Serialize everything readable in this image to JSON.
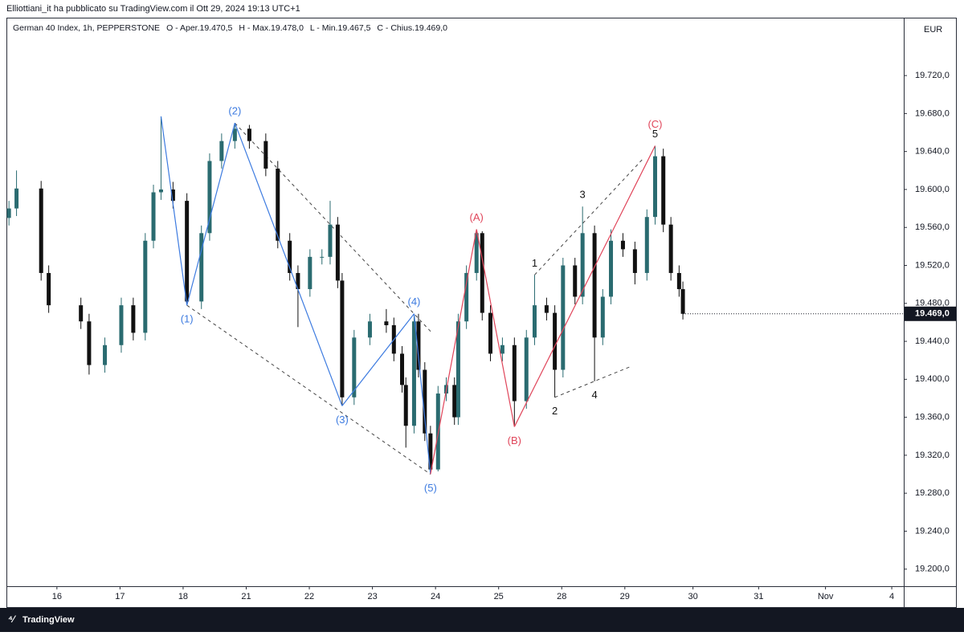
{
  "header": {
    "publisher": "Elliottiani_it ha pubblicato su TradingView.com il Ott 29, 2024 19:13 UTC+1"
  },
  "footer": {
    "brand": "TradingView"
  },
  "chart_data": {
    "type": "candlestick",
    "title": "German 40 Index, 1h, PEPPERSTONE",
    "ohlc_legend": [
      "O - Aper.19.470,5",
      "H - Max.19.478,0",
      "L - Min.19.467,5",
      "C - Chius.19.469,0"
    ],
    "currency": "EUR",
    "up_color": "#2a6b70",
    "down_color": "#111111",
    "x": [
      -0.76,
      -0.64,
      -0.25,
      -0.13,
      0.38,
      0.51,
      0.76,
      1.02,
      1.21,
      1.4,
      1.53,
      1.65,
      1.84,
      2.06,
      2.29,
      2.42,
      2.61,
      2.82,
      3.05,
      3.31,
      3.5,
      3.69,
      3.82,
      4.01,
      4.2,
      4.33,
      4.45,
      4.52,
      4.71,
      4.96,
      5.22,
      5.34,
      5.47,
      5.53,
      5.66,
      5.73,
      5.83,
      5.92,
      6.04,
      6.17,
      6.3,
      6.36,
      6.49,
      6.65,
      6.74,
      6.87,
      7.06,
      7.25,
      7.44,
      7.57,
      7.76,
      7.89,
      8.02,
      8.21,
      8.33,
      8.52,
      8.65,
      8.78,
      8.97,
      9.16,
      9.35,
      9.48,
      9.61,
      9.73,
      9.86,
      9.92
    ],
    "open": [
      19570,
      19580,
      19601,
      19512,
      19478,
      19461,
      19415,
      19436,
      19478,
      19449,
      19546,
      19597,
      19600,
      19588,
      19482,
      19554,
      19630,
      19651,
      19664,
      19651,
      19622,
      19546,
      19512,
      19495,
      19529,
      19529,
      19563,
      19504,
      19381,
      19444,
      19461,
      19457,
      19427,
      19394,
      19351,
      19461,
      19410,
      19343,
      19305,
      19385,
      19394,
      19360,
      19461,
      19512,
      19554,
      19470,
      19427,
      19436,
      19377,
      19444,
      19478,
      19470,
      19410,
      19520,
      19487,
      19554,
      19444,
      19487,
      19546,
      19537,
      19512,
      19571,
      19635,
      19563,
      19512,
      19495
    ],
    "high": [
      19588,
      19620,
      19609,
      19520,
      19486,
      19469,
      19444,
      19486,
      19486,
      19554,
      19605,
      19677,
      19608,
      19596,
      19562,
      19638,
      19659,
      19670,
      19668,
      19659,
      19630,
      19554,
      19520,
      19537,
      19537,
      19588,
      19571,
      19512,
      19452,
      19469,
      19474,
      19465,
      19435,
      19402,
      19469,
      19469,
      19418,
      19351,
      19393,
      19402,
      19402,
      19469,
      19520,
      19558,
      19556,
      19478,
      19444,
      19444,
      19452,
      19510,
      19486,
      19478,
      19528,
      19528,
      19582,
      19562,
      19495,
      19558,
      19554,
      19545,
      19579,
      19646,
      19643,
      19571,
      19520,
      19503
    ],
    "low": [
      19562,
      19572,
      19504,
      19470,
      19453,
      19405,
      19407,
      19428,
      19441,
      19441,
      19538,
      19589,
      19580,
      19478,
      19474,
      19546,
      19622,
      19643,
      19643,
      19614,
      19538,
      19504,
      19455,
      19487,
      19521,
      19521,
      19496,
      19372,
      19373,
      19436,
      19449,
      19419,
      19386,
      19328,
      19343,
      19402,
      19335,
      19300,
      19303,
      19377,
      19352,
      19352,
      19453,
      19504,
      19462,
      19419,
      19419,
      19350,
      19369,
      19436,
      19462,
      19381,
      19402,
      19479,
      19479,
      19398,
      19436,
      19479,
      19529,
      19500,
      19504,
      19563,
      19555,
      19504,
      19487,
      19463
    ],
    "close": [
      19580,
      19601,
      19512,
      19478,
      19461,
      19415,
      19436,
      19478,
      19449,
      19546,
      19597,
      19600,
      19588,
      19482,
      19554,
      19630,
      19651,
      19664,
      19651,
      19622,
      19546,
      19512,
      19495,
      19529,
      19529,
      19563,
      19504,
      19381,
      19444,
      19461,
      19457,
      19427,
      19394,
      19351,
      19461,
      19410,
      19343,
      19305,
      19385,
      19394,
      19360,
      19461,
      19512,
      19554,
      19470,
      19427,
      19436,
      19377,
      19444,
      19478,
      19470,
      19410,
      19520,
      19487,
      19554,
      19444,
      19487,
      19546,
      19537,
      19512,
      19571,
      19635,
      19563,
      19512,
      19495,
      19469
    ],
    "last_price": {
      "value": 19469,
      "label": "19.469,0"
    },
    "xlim": [
      -0.8,
      13.42
    ],
    "xticks": [
      {
        "value": 0,
        "label": "16"
      },
      {
        "value": 1,
        "label": "17"
      },
      {
        "value": 2,
        "label": "18"
      },
      {
        "value": 3,
        "label": "21"
      },
      {
        "value": 4,
        "label": "22"
      },
      {
        "value": 5,
        "label": "23"
      },
      {
        "value": 6,
        "label": "24"
      },
      {
        "value": 7,
        "label": "25"
      },
      {
        "value": 8,
        "label": "28"
      },
      {
        "value": 9,
        "label": "29"
      },
      {
        "value": 10.08,
        "label": "30"
      },
      {
        "value": 11.12,
        "label": "31"
      },
      {
        "value": 12.18,
        "label": "Nov"
      },
      {
        "value": 13.23,
        "label": "4"
      }
    ],
    "ylim": [
      19182,
      19781
    ],
    "yticks": [
      {
        "value": 19200,
        "label": "19.200,0"
      },
      {
        "value": 19240,
        "label": "19.240,0"
      },
      {
        "value": 19280,
        "label": "19.280,0"
      },
      {
        "value": 19320,
        "label": "19.320,0"
      },
      {
        "value": 19360,
        "label": "19.360,0"
      },
      {
        "value": 19400,
        "label": "19.400,0"
      },
      {
        "value": 19440,
        "label": "19.440,0"
      },
      {
        "value": 19480,
        "label": "19.480,0"
      },
      {
        "value": 19520,
        "label": "19.520,0"
      },
      {
        "value": 19560,
        "label": "19.560,0"
      },
      {
        "value": 19600,
        "label": "19.600,0"
      },
      {
        "value": 19640,
        "label": "19.640,0"
      },
      {
        "value": 19680,
        "label": "19.680,0"
      },
      {
        "value": 19720,
        "label": "19.720,0"
      }
    ],
    "annotations": [
      {
        "text": "(1)",
        "color": "#3d7be0"
      },
      {
        "text": "(2)",
        "color": "#3d7be0"
      },
      {
        "text": "(3)",
        "color": "#3d7be0"
      },
      {
        "text": "(4)",
        "color": "#3d7be0"
      },
      {
        "text": "(5)",
        "color": "#3d7be0"
      },
      {
        "text": "(A)",
        "color": "#e0455a"
      },
      {
        "text": "(B)",
        "color": "#e0455a"
      },
      {
        "text": "(C)",
        "color": "#e0455a"
      },
      {
        "text": "1",
        "color": "#111111"
      },
      {
        "text": "2",
        "color": "#111111"
      },
      {
        "text": "3",
        "color": "#111111"
      },
      {
        "text": "4",
        "color": "#111111"
      },
      {
        "text": "5",
        "color": "#111111"
      }
    ]
  }
}
